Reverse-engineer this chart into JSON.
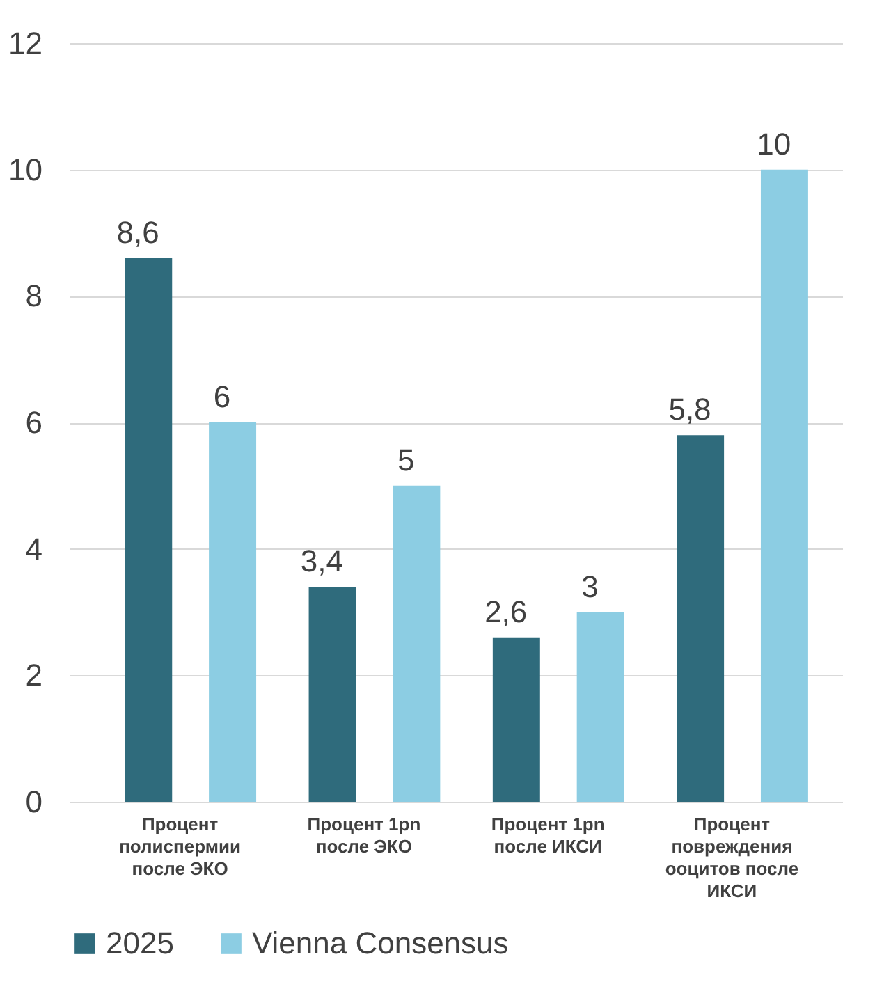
{
  "chart_data": {
    "type": "bar",
    "categories": [
      "Процент полиспермии после ЭКО",
      "Процент 1pn после ЭКО",
      "Процент 1pn после ИКСИ",
      "Процент повреждения ооцитов после ИКСИ"
    ],
    "series": [
      {
        "name": "2025",
        "color": "#2f6b7c",
        "values": [
          8.6,
          3.4,
          2.6,
          5.8
        ],
        "value_labels": [
          "8,6",
          "3,4",
          "2,6",
          "5,8"
        ]
      },
      {
        "name": "Vienna Consensus",
        "color": "#8ccde3",
        "values": [
          6,
          5,
          3,
          10
        ],
        "value_labels": [
          "6",
          "5",
          "3",
          "10"
        ]
      }
    ],
    "ylim": [
      0,
      12
    ],
    "yticks": [
      0,
      2,
      4,
      6,
      8,
      10,
      12
    ],
    "grid": "y",
    "legend": "bottom"
  }
}
